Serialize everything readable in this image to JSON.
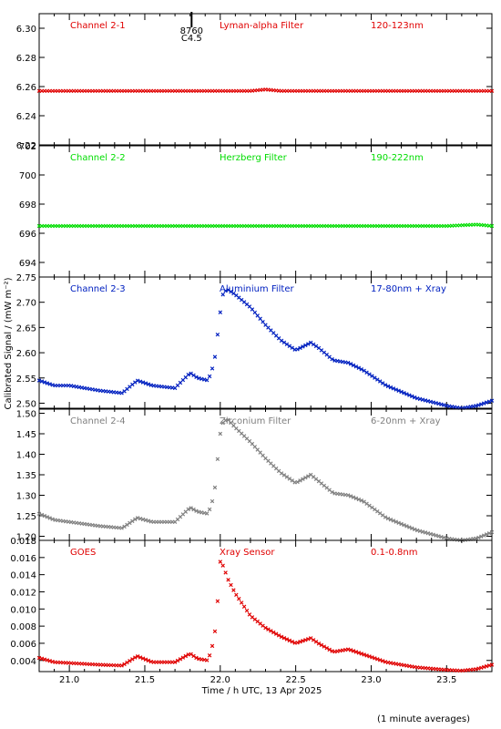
{
  "chart_data": {
    "type": "scatter",
    "xlabel": "Time / h UTC, 13 Apr 2025",
    "ylabel": "Calibrated Signal / (mW m⁻²)",
    "footnote": "(1 minute averages)",
    "xlim": [
      20.8,
      23.8
    ],
    "xticks": [
      "21.0",
      "21.5",
      "22.0",
      "22.5",
      "23.0",
      "23.5"
    ],
    "xtick_values": [
      21.0,
      21.5,
      22.0,
      22.5,
      23.0,
      23.5
    ],
    "panels": [
      {
        "channel": "Channel 2-1",
        "filter": "Lyman-alpha Filter",
        "band": "120-123nm",
        "color": "#e00000",
        "ylim": [
          6.22,
          6.31
        ],
        "yticks": [
          "6.22",
          "6.24",
          "6.26",
          "6.28",
          "6.30"
        ],
        "ytick_values": [
          6.22,
          6.24,
          6.26,
          6.28,
          6.3
        ],
        "marker_time": 21.81,
        "marker_labels": [
          "8760",
          "C4.5"
        ],
        "series": {
          "x": [
            20.8,
            21.0,
            21.5,
            22.0,
            22.2,
            22.3,
            22.4,
            23.0,
            23.5,
            23.8
          ],
          "y": [
            6.257,
            6.257,
            6.257,
            6.257,
            6.257,
            6.258,
            6.257,
            6.257,
            6.257,
            6.257
          ]
        }
      },
      {
        "channel": "Channel 2-2",
        "filter": "Herzberg Filter",
        "band": "190-222nm",
        "color": "#00dd00",
        "ylim": [
          693,
          702
        ],
        "yticks": [
          "694",
          "696",
          "698",
          "700",
          "702"
        ],
        "ytick_values": [
          694,
          696,
          698,
          700,
          702
        ],
        "series": {
          "x": [
            20.8,
            21.0,
            21.5,
            22.0,
            22.5,
            23.0,
            23.5,
            23.7,
            23.8
          ],
          "y": [
            696.5,
            696.5,
            696.5,
            696.5,
            696.5,
            696.5,
            696.5,
            696.6,
            696.5
          ]
        }
      },
      {
        "channel": "Channel 2-3",
        "filter": "Aluminium Filter",
        "band": "17-80nm + Xray",
        "color": "#0020c0",
        "ylim": [
          2.49,
          2.75
        ],
        "yticks": [
          "2.50",
          "2.55",
          "2.60",
          "2.65",
          "2.70",
          "2.75"
        ],
        "ytick_values": [
          2.5,
          2.55,
          2.6,
          2.65,
          2.7,
          2.75
        ],
        "series": {
          "x": [
            20.8,
            20.9,
            21.0,
            21.1,
            21.2,
            21.35,
            21.45,
            21.55,
            21.7,
            21.8,
            21.85,
            21.92,
            21.96,
            21.98,
            22.0,
            22.02,
            22.05,
            22.1,
            22.2,
            22.3,
            22.4,
            22.5,
            22.6,
            22.65,
            22.75,
            22.85,
            22.95,
            23.1,
            23.3,
            23.5,
            23.6,
            23.7,
            23.8
          ],
          "y": [
            2.545,
            2.535,
            2.535,
            2.53,
            2.525,
            2.52,
            2.545,
            2.535,
            2.53,
            2.56,
            2.55,
            2.545,
            2.58,
            2.63,
            2.68,
            2.72,
            2.725,
            2.715,
            2.69,
            2.655,
            2.625,
            2.605,
            2.62,
            2.61,
            2.585,
            2.58,
            2.565,
            2.535,
            2.51,
            2.495,
            2.49,
            2.495,
            2.505
          ]
        }
      },
      {
        "channel": "Channel 2-4",
        "filter": "Zirconium Filter",
        "band": "6-20nm + Xray",
        "color": "#808080",
        "ylim": [
          1.19,
          1.51
        ],
        "yticks": [
          "1.20",
          "1.25",
          "1.30",
          "1.35",
          "1.40",
          "1.45",
          "1.50"
        ],
        "ytick_values": [
          1.2,
          1.25,
          1.3,
          1.35,
          1.4,
          1.45,
          1.5
        ],
        "series": {
          "x": [
            20.8,
            20.9,
            21.0,
            21.1,
            21.2,
            21.35,
            21.45,
            21.55,
            21.7,
            21.8,
            21.85,
            21.92,
            21.96,
            21.98,
            22.0,
            22.02,
            22.05,
            22.1,
            22.2,
            22.3,
            22.4,
            22.5,
            22.6,
            22.65,
            22.75,
            22.85,
            22.95,
            23.1,
            23.3,
            23.5,
            23.6,
            23.7,
            23.8
          ],
          "y": [
            1.255,
            1.24,
            1.235,
            1.23,
            1.225,
            1.22,
            1.245,
            1.235,
            1.235,
            1.27,
            1.26,
            1.255,
            1.3,
            1.38,
            1.45,
            1.48,
            1.485,
            1.465,
            1.43,
            1.39,
            1.355,
            1.33,
            1.35,
            1.335,
            1.305,
            1.3,
            1.285,
            1.245,
            1.215,
            1.195,
            1.19,
            1.195,
            1.21
          ]
        }
      },
      {
        "channel": "GOES",
        "filter": "Xray Sensor",
        "band": "0.1-0.8nm",
        "color": "#e00000",
        "ylim": [
          0.0027,
          0.018
        ],
        "yticks": [
          "0.004",
          "0.006",
          "0.008",
          "0.010",
          "0.012",
          "0.014",
          "0.016",
          "0.018"
        ],
        "ytick_values": [
          0.004,
          0.006,
          0.008,
          0.01,
          0.012,
          0.014,
          0.016,
          0.018
        ],
        "series": {
          "x": [
            20.8,
            20.9,
            21.0,
            21.1,
            21.2,
            21.35,
            21.45,
            21.55,
            21.7,
            21.8,
            21.85,
            21.92,
            21.96,
            21.98,
            22.0,
            22.02,
            22.05,
            22.1,
            22.2,
            22.3,
            22.4,
            22.5,
            22.6,
            22.65,
            22.75,
            22.85,
            22.95,
            23.1,
            23.3,
            23.5,
            23.6,
            23.7,
            23.8
          ],
          "y": [
            0.0043,
            0.0038,
            0.0037,
            0.0036,
            0.0035,
            0.0034,
            0.0045,
            0.0038,
            0.0038,
            0.0048,
            0.0042,
            0.004,
            0.0065,
            0.0103,
            0.0155,
            0.015,
            0.0135,
            0.0118,
            0.0092,
            0.0078,
            0.0068,
            0.006,
            0.0066,
            0.006,
            0.005,
            0.0053,
            0.0047,
            0.0038,
            0.0032,
            0.0029,
            0.0028,
            0.003,
            0.0035
          ]
        }
      }
    ]
  }
}
